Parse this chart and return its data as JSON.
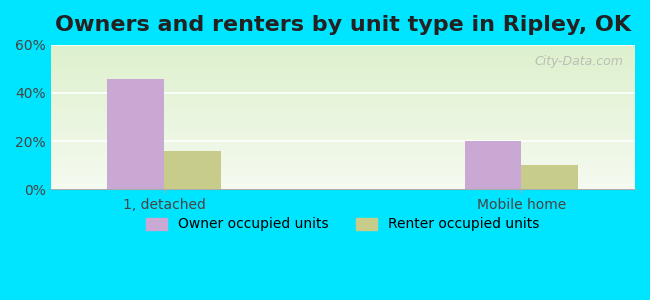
{
  "title": "Owners and renters by unit type in Ripley, OK",
  "categories": [
    "1, detached",
    "Mobile home"
  ],
  "owner_values": [
    46,
    20
  ],
  "renter_values": [
    16,
    10
  ],
  "owner_color": "#c9a8d4",
  "renter_color": "#c8cc8a",
  "ylim": [
    0,
    60
  ],
  "yticks": [
    0,
    20,
    40,
    60
  ],
  "ytick_labels": [
    "0%",
    "20%",
    "40%",
    "60%"
  ],
  "bar_width": 0.35,
  "background_top": "#e8f5e0",
  "background_bottom": "#f5faf0",
  "outer_bg": "#00e5ff",
  "title_fontsize": 16,
  "legend_fontsize": 10,
  "watermark": "City-Data.com"
}
